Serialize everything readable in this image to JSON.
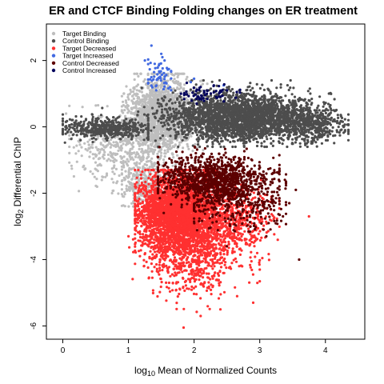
{
  "chart_data": {
    "type": "scatter",
    "title": "ER and CTCF Binding Folding changes on ER treatment",
    "xlabel": {
      "prefix": "log",
      "sub": "10",
      "rest": " Mean of Normalized Counts"
    },
    "ylabel": {
      "prefix": "log",
      "sub": "2",
      "rest": " Differential ChIP"
    },
    "xlim": [
      -0.25,
      4.6
    ],
    "ylim": [
      -6.4,
      3.1
    ],
    "x_ticks": [
      0,
      1,
      2,
      3,
      4
    ],
    "y_ticks": [
      -6,
      -4,
      -2,
      0,
      2
    ],
    "grid": false,
    "legend_position": "top-left",
    "series": [
      {
        "name": "Target Binding",
        "color": "#bebebe",
        "regions": [
          {
            "xc": 1.5,
            "yc": 0.35,
            "sx": 0.25,
            "sy": 0.55,
            "n": 1800,
            "xmin": 0.9,
            "xmax": 2.6,
            "ymin": -1.6,
            "ymax": 1.6
          },
          {
            "xc": 0.8,
            "yc": -0.6,
            "sx": 0.35,
            "sy": 0.5,
            "n": 350,
            "xmin": 0.1,
            "xmax": 1.5,
            "ymin": -2.3,
            "ymax": 1.0
          },
          {
            "xc": 1.25,
            "yc": -1.7,
            "sx": 0.2,
            "sy": 0.4,
            "n": 300,
            "xmin": 0.9,
            "xmax": 2.0,
            "ymin": -2.4,
            "ymax": -0.6
          }
        ],
        "points": [
          [
            1.3,
            1.6
          ],
          [
            1.45,
            1.8
          ],
          [
            1.75,
            1.5
          ],
          [
            2.2,
            1.3
          ],
          [
            0.05,
            0.4
          ],
          [
            0.3,
            0.6
          ],
          [
            0.6,
            -1.5
          ],
          [
            0.75,
            -2.0
          ]
        ]
      },
      {
        "name": "Control Binding",
        "color": "#4d4d4d",
        "regions": [
          {
            "xc": 2.7,
            "yc": 0.3,
            "sx": 0.55,
            "sy": 0.35,
            "n": 2800,
            "xmin": 0.6,
            "xmax": 4.35,
            "ymin": -0.6,
            "ymax": 1.4
          },
          {
            "xc": 0.7,
            "yc": -0.05,
            "sx": 0.35,
            "sy": 0.15,
            "n": 500,
            "xmin": 0.0,
            "xmax": 1.3,
            "ymin": -0.5,
            "ymax": 0.4
          },
          {
            "xc": 3.8,
            "yc": 0.05,
            "sx": 0.25,
            "sy": 0.25,
            "n": 400,
            "xmin": 3.3,
            "xmax": 4.35,
            "ymin": -0.5,
            "ymax": 0.5
          }
        ],
        "points": [
          [
            4.3,
            -0.1
          ],
          [
            4.2,
            0.0
          ],
          [
            4.35,
            -0.15
          ],
          [
            0.05,
            0.0
          ],
          [
            0.1,
            0.05
          ]
        ]
      },
      {
        "name": "Target Decreased",
        "color": "#ff3030",
        "regions": [
          {
            "xc": 1.75,
            "yc": -2.6,
            "sx": 0.3,
            "sy": 0.55,
            "n": 3200,
            "xmin": 1.1,
            "xmax": 3.2,
            "ymin": -5.4,
            "ymax": -1.3
          },
          {
            "xc": 2.0,
            "yc": -3.9,
            "sx": 0.35,
            "sy": 0.6,
            "n": 650,
            "xmin": 1.0,
            "xmax": 3.0,
            "ymin": -5.8,
            "ymax": -2.8
          },
          {
            "xc": 2.6,
            "yc": -2.8,
            "sx": 0.3,
            "sy": 0.5,
            "n": 450,
            "xmin": 2.2,
            "xmax": 3.3,
            "ymin": -4.2,
            "ymax": -1.6
          }
        ],
        "points": [
          [
            1.84,
            -6.05
          ],
          [
            2.9,
            -5.3
          ],
          [
            3.75,
            -2.7
          ],
          [
            1.0,
            -3.3
          ],
          [
            2.4,
            -5.5
          ],
          [
            2.1,
            -5.7
          ]
        ]
      },
      {
        "name": "Target Increased",
        "color": "#4169e1",
        "regions": [
          {
            "xc": 1.45,
            "yc": 1.6,
            "sx": 0.1,
            "sy": 0.25,
            "n": 55,
            "xmin": 1.3,
            "xmax": 1.65,
            "ymin": 1.1,
            "ymax": 2.1
          }
        ],
        "points": [
          [
            1.35,
            2.45
          ],
          [
            1.5,
            2.2
          ],
          [
            1.55,
            2.0
          ],
          [
            1.4,
            1.9
          ],
          [
            1.95,
            1.35
          ],
          [
            2.0,
            1.45
          ],
          [
            2.45,
            1.25
          ],
          [
            1.25,
            2.0
          ]
        ]
      },
      {
        "name": "Control Decreased",
        "color": "#5c0000",
        "regions": [
          {
            "xc": 2.3,
            "yc": -1.6,
            "sx": 0.4,
            "sy": 0.35,
            "n": 1100,
            "xmin": 1.45,
            "xmax": 3.3,
            "ymin": -3.0,
            "ymax": -0.6
          },
          {
            "xc": 2.7,
            "yc": -2.3,
            "sx": 0.35,
            "sy": 0.4,
            "n": 300,
            "xmin": 2.0,
            "xmax": 3.4,
            "ymin": -3.6,
            "ymax": -1.4
          }
        ],
        "points": [
          [
            3.4,
            -1.7
          ],
          [
            3.55,
            -1.9
          ],
          [
            3.45,
            -2.3
          ],
          [
            3.6,
            -4.0
          ],
          [
            3.1,
            -3.3
          ],
          [
            3.2,
            -1.4
          ]
        ]
      },
      {
        "name": "Control Increased",
        "color": "#00005c",
        "regions": [
          {
            "xc": 2.2,
            "yc": 0.95,
            "sx": 0.25,
            "sy": 0.15,
            "n": 55,
            "xmin": 1.85,
            "xmax": 2.7,
            "ymin": 0.7,
            "ymax": 1.35
          }
        ],
        "points": [
          [
            1.8,
            1.0
          ],
          [
            2.3,
            1.25
          ],
          [
            2.5,
            1.1
          ],
          [
            2.65,
            1.05
          ],
          [
            2.1,
            1.2
          ]
        ]
      }
    ]
  }
}
